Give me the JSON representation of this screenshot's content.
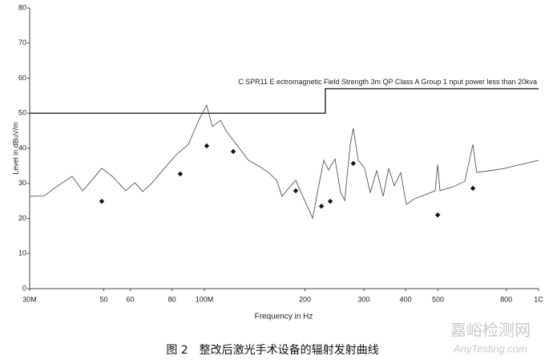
{
  "chart_data": {
    "type": "line",
    "xlabel": "Frequency in Hz",
    "ylabel": "Level in dBuV/m",
    "xscale": "log",
    "xlim": [
      30,
      1000
    ],
    "ylim": [
      0,
      80
    ],
    "xticks": [
      {
        "value": 30,
        "label": "30M"
      },
      50,
      60,
      80,
      {
        "value": 100,
        "label": "100M"
      },
      200,
      300,
      400,
      500,
      800,
      {
        "value": 1000,
        "label": "1C"
      }
    ],
    "yticks": [
      0,
      10,
      20,
      30,
      40,
      50,
      60,
      70,
      80
    ],
    "grid": false,
    "series": [
      {
        "color": "#555555",
        "x": [
          30,
          33.2,
          36.0,
          40.2,
          43.2,
          45.4,
          49.3,
          53.0,
          58.2,
          61.9,
          65.4,
          69.8,
          75.9,
          82.4,
          89.5,
          96.2,
          101.6,
          105.6,
          111.7,
          116.1,
          124.7,
          135.5,
          147.1,
          155.5,
          164.4,
          170.7,
          178.6,
          187.6,
          199.5,
          210.8,
          219,
          227.6,
          235.2,
          246,
          255.5,
          262.9,
          273.1,
          279,
          288.6,
          301.6,
          313.6,
          327.7,
          342.7,
          356,
          370,
          386.8,
          402,
          424.8,
          456.5,
          490.6,
          499,
          507,
          553.8,
          601.6,
          636,
          653,
          710,
          793,
          885,
          1000
        ],
        "values": [
          26.3,
          26.5,
          29.0,
          32.0,
          27.9,
          30.2,
          34.3,
          32.0,
          27.9,
          30.2,
          27.7,
          30.2,
          34.3,
          38.2,
          41.1,
          48.0,
          52.3,
          46.2,
          48.0,
          45.0,
          41.1,
          36.6,
          34.7,
          33.1,
          30.9,
          26.3,
          28.6,
          30.9,
          25.1,
          20.1,
          28.6,
          36.6,
          33.8,
          37.0,
          27.4,
          25.1,
          41.1,
          45.7,
          36.6,
          34.3,
          27.4,
          33.6,
          26.3,
          34.3,
          29.3,
          33.1,
          24.0,
          25.6,
          26.7,
          27.9,
          35.4,
          27.9,
          29.0,
          30.6,
          41.1,
          33.1,
          33.6,
          34.3,
          35.4,
          36.6
        ]
      }
    ],
    "markers": {
      "color": "#111111",
      "x": [
        49.3,
        84.7,
        101.6,
        122,
        187.6,
        224,
        238,
        279,
        499,
        636
      ],
      "values": [
        24.9,
        32.7,
        40.7,
        39.1,
        27.9,
        23.5,
        24.9,
        35.7,
        21.0,
        28.6
      ]
    },
    "limit": {
      "color": "#333333",
      "label": "C SPR11 E ectromagnetic Field Strength 3m QP Class A Group 1  nput power less than 20kva",
      "x": [
        30,
        230,
        230,
        1000
      ],
      "values": [
        50,
        50,
        57,
        57
      ]
    }
  },
  "caption": "图 2　整改后激光手术设备的辐射发射曲线",
  "watermark": {
    "name": "嘉峪检测网",
    "url": "AnyTesting.com"
  }
}
